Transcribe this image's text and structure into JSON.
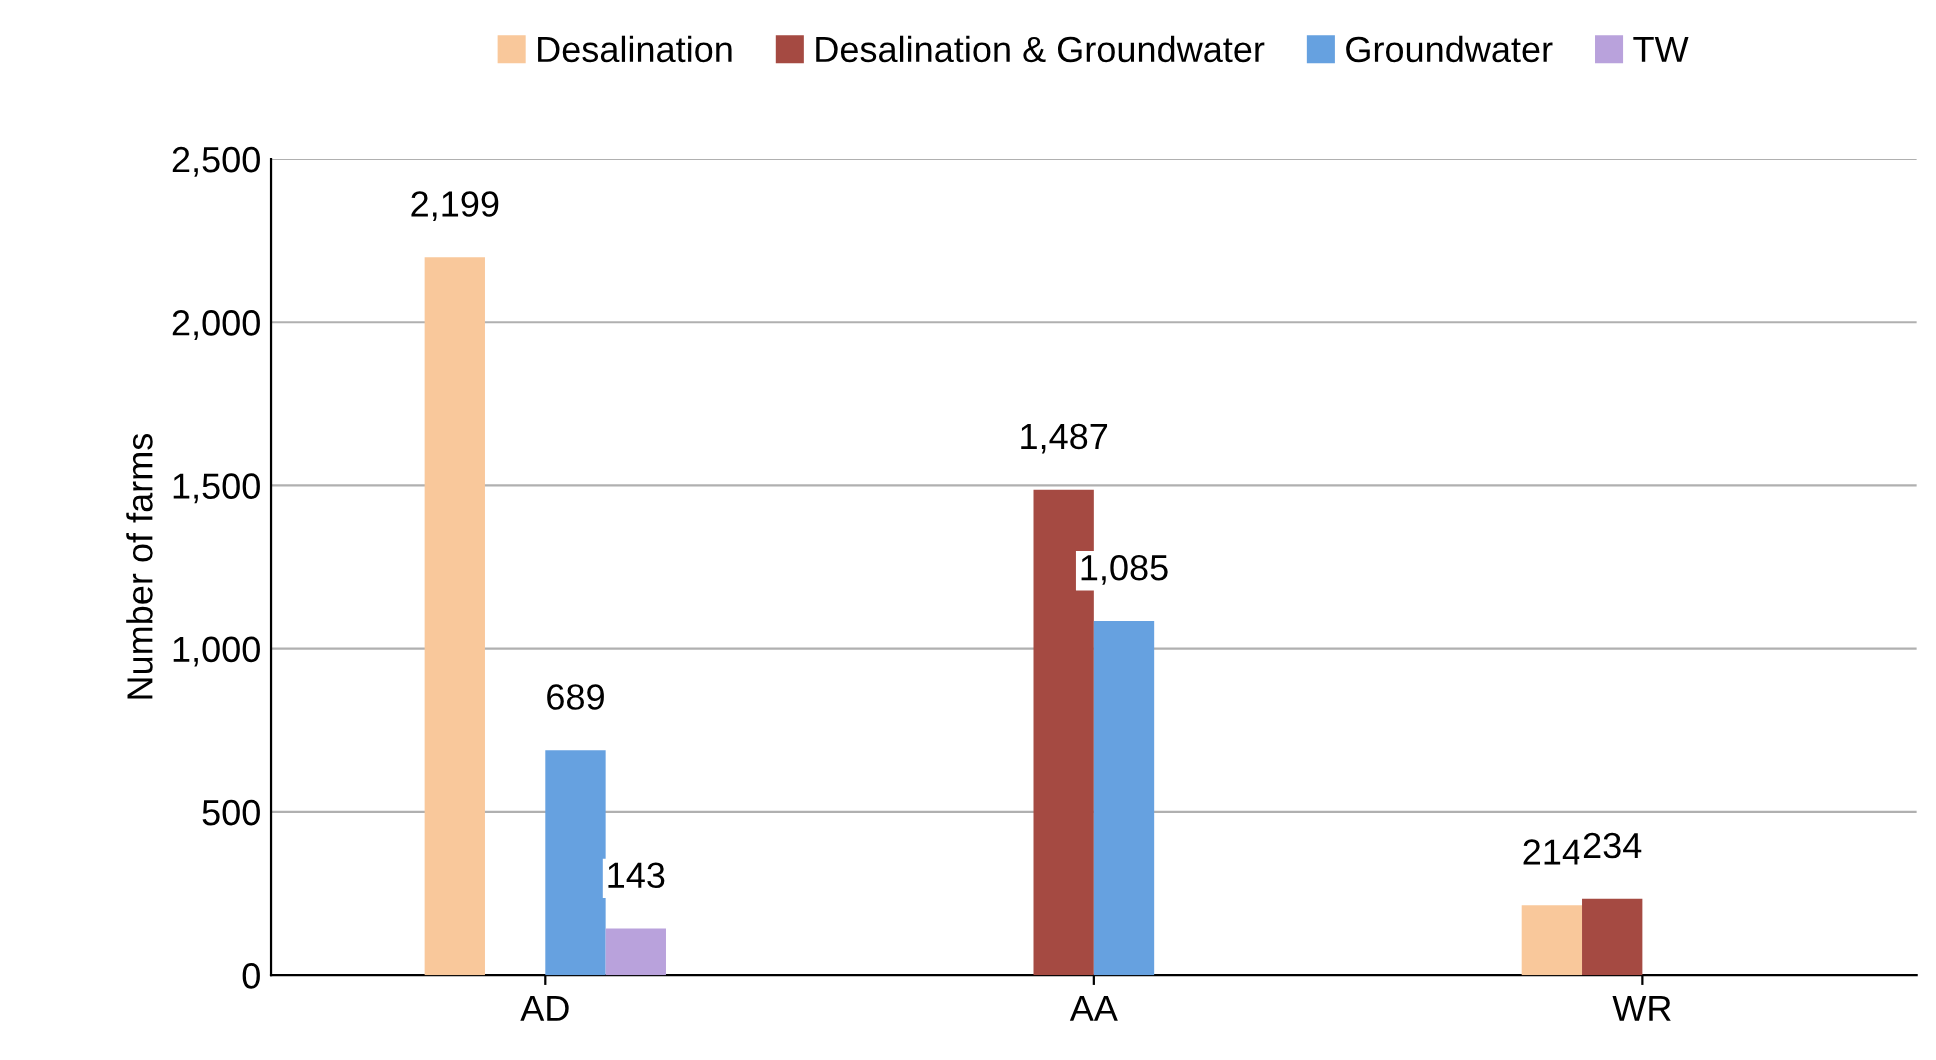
{
  "chart_data": {
    "type": "bar",
    "ylabel": "Number of farms",
    "categories": [
      "AD",
      "AA",
      "WR"
    ],
    "series": [
      {
        "name": "Desalination",
        "color": "#f9c89b",
        "values": [
          2199,
          null,
          214
        ],
        "value_labels": [
          "2,199",
          null,
          "214"
        ]
      },
      {
        "name": "Desalination & Groundwater",
        "color": "#a54a42",
        "values": [
          null,
          1487,
          234
        ],
        "value_labels": [
          null,
          "1,487",
          "234"
        ]
      },
      {
        "name": "Groundwater",
        "color": "#66a1e0",
        "values": [
          689,
          1085,
          null
        ],
        "value_labels": [
          "689",
          "1,085",
          null
        ]
      },
      {
        "name": "TW",
        "color": "#b9a2dc",
        "values": [
          143,
          null,
          null
        ],
        "value_labels": [
          "143",
          null,
          null
        ]
      }
    ],
    "ylim": [
      0,
      2500
    ],
    "yticks": [
      0,
      500,
      {
        "value": 1000,
        "label": "1,000"
      },
      {
        "value": 1500,
        "label": "1,500"
      },
      {
        "value": 2000,
        "label": "2,000"
      },
      {
        "value": 2500,
        "label": "2,500"
      }
    ],
    "grid": "y",
    "legend": "top"
  }
}
